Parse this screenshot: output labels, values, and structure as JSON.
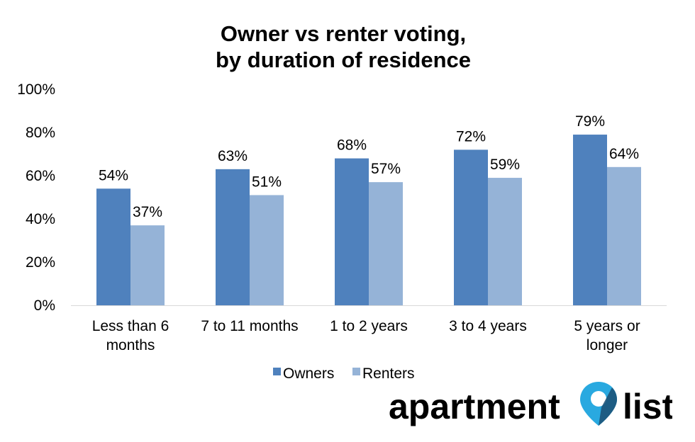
{
  "chart_data": {
    "type": "bar",
    "title": "Owner vs renter voting, by duration of residence",
    "title_lines": [
      "Owner vs renter voting,",
      "by duration of residence"
    ],
    "categories": [
      "Less than 6 months",
      "7 to 11 months",
      "1 to 2 years",
      "3 to 4 years",
      "5 years or longer"
    ],
    "category_lines": [
      [
        "Less than 6",
        "months"
      ],
      [
        "7 to 11 months"
      ],
      [
        "1 to 2 years"
      ],
      [
        "3 to 4 years"
      ],
      [
        "5 years or",
        "longer"
      ]
    ],
    "series": [
      {
        "name": "Owners",
        "values": [
          54,
          63,
          68,
          72,
          79
        ],
        "labels": [
          "54%",
          "63%",
          "68%",
          "72%",
          "79%"
        ],
        "color": "#4F81BD"
      },
      {
        "name": "Renters",
        "values": [
          37,
          51,
          57,
          59,
          64
        ],
        "labels": [
          "37%",
          "51%",
          "57%",
          "59%",
          "64%"
        ],
        "color": "#95B3D7"
      }
    ],
    "ylim": [
      0,
      100
    ],
    "yticks": [
      0,
      20,
      40,
      60,
      80,
      100
    ],
    "ytick_labels": [
      "0%",
      "20%",
      "40%",
      "60%",
      "80%",
      "100%"
    ],
    "xlabel": "",
    "ylabel": "",
    "grid": false,
    "legend_position": "bottom"
  },
  "brand": {
    "logo_text_left": "apartment",
    "logo_text_right": "list",
    "pin_color": "#29A9E0",
    "pin_dark_color": "#1B4F72"
  }
}
